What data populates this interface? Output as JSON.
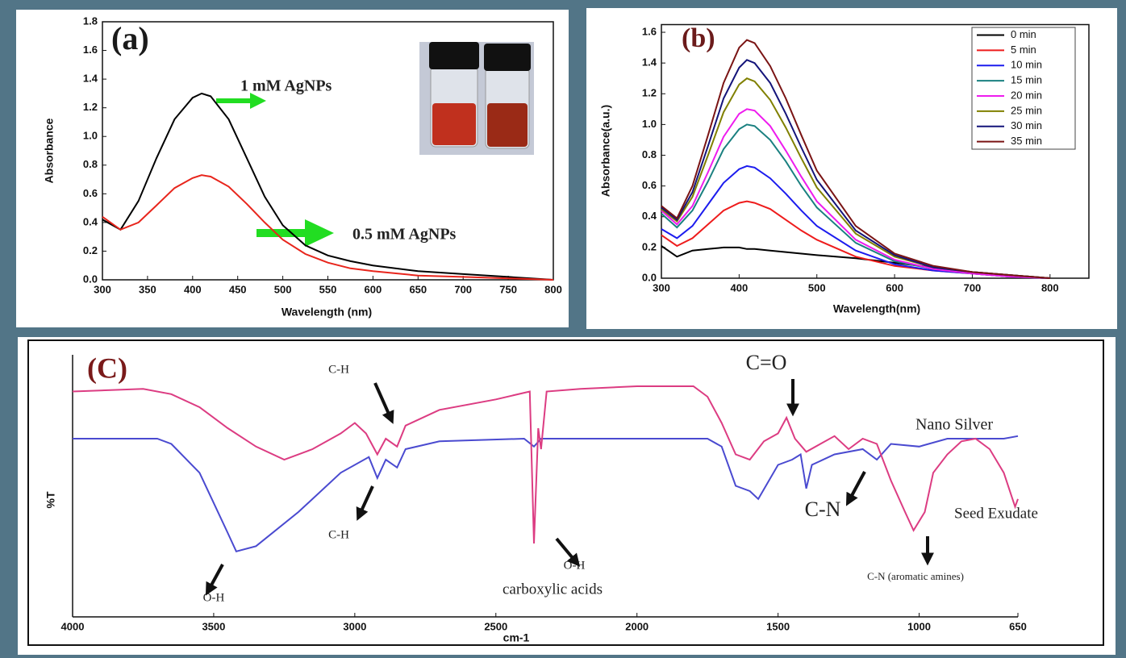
{
  "chart_data": [
    {
      "type": "line",
      "title": "(a)",
      "x_label": "Wavelength (nm)",
      "y_label": "Absorbance",
      "x": [
        300,
        320,
        340,
        360,
        380,
        400,
        410,
        420,
        440,
        460,
        480,
        500,
        525,
        550,
        575,
        600,
        650,
        700,
        750,
        800
      ],
      "series": [
        {
          "name": "1 mM AgNPs",
          "color": "#000000",
          "values": [
            0.42,
            0.35,
            0.55,
            0.85,
            1.12,
            1.27,
            1.3,
            1.28,
            1.12,
            0.85,
            0.58,
            0.38,
            0.24,
            0.17,
            0.13,
            0.1,
            0.06,
            0.04,
            0.02,
            0.0
          ]
        },
        {
          "name": "0.5 mM AgNPs",
          "color": "#e8251c",
          "values": [
            0.44,
            0.35,
            0.4,
            0.52,
            0.64,
            0.71,
            0.73,
            0.72,
            0.65,
            0.53,
            0.4,
            0.28,
            0.18,
            0.12,
            0.08,
            0.06,
            0.03,
            0.02,
            0.01,
            0.0
          ]
        }
      ],
      "xlim": [
        300,
        800
      ],
      "xticks": [
        300,
        350,
        400,
        450,
        500,
        550,
        600,
        650,
        700,
        750,
        800
      ],
      "ylim": [
        0,
        1.8
      ],
      "yticks": [
        {
          "value": 0,
          "label": "0.0"
        },
        0.2,
        0.4,
        0.6,
        0.8,
        {
          "value": 1,
          "label": "1.0"
        },
        1.2,
        1.4,
        1.6,
        1.8
      ]
    },
    {
      "type": "line",
      "title": "(b)",
      "x_label": "Wavelength(nm)",
      "y_label": "Absorbance(a.u.)",
      "x": [
        300,
        320,
        340,
        360,
        380,
        400,
        410,
        420,
        440,
        460,
        480,
        500,
        550,
        600,
        650,
        700,
        750,
        800
      ],
      "series": [
        {
          "name": "0 min",
          "color": "#000000",
          "values": [
            0.21,
            0.14,
            0.18,
            0.19,
            0.2,
            0.2,
            0.19,
            0.19,
            0.18,
            0.17,
            0.16,
            0.15,
            0.13,
            0.1,
            0.07,
            0.04,
            0.02,
            0.0
          ]
        },
        {
          "name": "5 min",
          "color": "#ee1c1c",
          "values": [
            0.28,
            0.21,
            0.26,
            0.35,
            0.44,
            0.49,
            0.5,
            0.49,
            0.45,
            0.38,
            0.31,
            0.25,
            0.14,
            0.08,
            0.05,
            0.03,
            0.01,
            0.0
          ]
        },
        {
          "name": "10 min",
          "color": "#1c1cee",
          "values": [
            0.32,
            0.26,
            0.34,
            0.48,
            0.62,
            0.71,
            0.73,
            0.72,
            0.65,
            0.55,
            0.44,
            0.34,
            0.18,
            0.09,
            0.05,
            0.03,
            0.01,
            0.0
          ]
        },
        {
          "name": "15 min",
          "color": "#1a8080",
          "values": [
            0.42,
            0.33,
            0.44,
            0.63,
            0.84,
            0.97,
            1.0,
            0.99,
            0.9,
            0.76,
            0.6,
            0.46,
            0.23,
            0.11,
            0.06,
            0.03,
            0.01,
            0.0
          ]
        },
        {
          "name": "20 min",
          "color": "#ee1cee",
          "values": [
            0.44,
            0.35,
            0.47,
            0.69,
            0.92,
            1.07,
            1.1,
            1.09,
            0.99,
            0.83,
            0.66,
            0.5,
            0.25,
            0.12,
            0.06,
            0.03,
            0.01,
            0.0
          ]
        },
        {
          "name": "25 min",
          "color": "#808000",
          "values": [
            0.45,
            0.37,
            0.53,
            0.8,
            1.08,
            1.26,
            1.3,
            1.28,
            1.16,
            0.98,
            0.78,
            0.59,
            0.29,
            0.14,
            0.07,
            0.04,
            0.02,
            0.0
          ]
        },
        {
          "name": "30 min",
          "color": "#14147a",
          "values": [
            0.46,
            0.38,
            0.56,
            0.86,
            1.17,
            1.37,
            1.42,
            1.4,
            1.27,
            1.07,
            0.85,
            0.64,
            0.31,
            0.15,
            0.07,
            0.04,
            0.02,
            0.0
          ]
        },
        {
          "name": "35 min",
          "color": "#7a1414",
          "values": [
            0.47,
            0.39,
            0.6,
            0.93,
            1.27,
            1.5,
            1.55,
            1.53,
            1.38,
            1.17,
            0.93,
            0.7,
            0.34,
            0.16,
            0.08,
            0.04,
            0.02,
            0.0
          ]
        }
      ],
      "xlim": [
        300,
        850
      ],
      "xticks": [
        300,
        400,
        500,
        600,
        700,
        800
      ],
      "ylim": [
        0,
        1.65
      ],
      "yticks": [
        {
          "value": 0,
          "label": "0.0"
        },
        0.2,
        0.4,
        0.6,
        0.8,
        {
          "value": 1,
          "label": "1.0"
        },
        1.2,
        1.4,
        1.6
      ],
      "legend": "upper right"
    },
    {
      "type": "line",
      "title": "(C)",
      "x_label": "cm-1",
      "y_label": "%T",
      "series": [
        {
          "name": "Nano Silver",
          "color": "#4a4ad0",
          "x": [
            4000,
            3700,
            3650,
            3550,
            3450,
            3420,
            3350,
            3200,
            3050,
            2950,
            2920,
            2890,
            2850,
            2820,
            2700,
            2400,
            2365,
            2340,
            2000,
            1750,
            1700,
            1650,
            1600,
            1570,
            1500,
            1450,
            1420,
            1400,
            1380,
            1300,
            1200,
            1150,
            1100,
            1000,
            900,
            800,
            700,
            650
          ],
          "values": [
            68,
            68,
            66,
            55,
            32,
            25,
            27,
            40,
            55,
            61,
            53,
            60,
            57,
            64,
            67,
            68,
            65,
            68,
            68,
            68,
            65,
            50,
            48,
            45,
            58,
            60,
            62,
            49,
            58,
            62,
            64,
            60,
            66,
            65,
            68,
            68,
            68,
            69
          ]
        },
        {
          "name": "Seed Exudate",
          "color": "#dc3c82",
          "x": [
            4000,
            3750,
            3650,
            3550,
            3450,
            3350,
            3250,
            3150,
            3050,
            3000,
            2960,
            2920,
            2890,
            2850,
            2820,
            2700,
            2500,
            2380,
            2365,
            2350,
            2340,
            2320,
            2200,
            2000,
            1800,
            1750,
            1700,
            1650,
            1600,
            1550,
            1500,
            1470,
            1440,
            1400,
            1350,
            1300,
            1250,
            1200,
            1150,
            1100,
            1050,
            1020,
            980,
            950,
            900,
            850,
            800,
            750,
            700,
            660,
            650
          ],
          "values": [
            86,
            87,
            85,
            80,
            72,
            65,
            60,
            64,
            70,
            74,
            70,
            62,
            68,
            65,
            73,
            79,
            83,
            86,
            28,
            72,
            64,
            86,
            87,
            88,
            88,
            84,
            74,
            62,
            60,
            67,
            70,
            76,
            68,
            63,
            66,
            69,
            64,
            68,
            66,
            52,
            40,
            33,
            40,
            55,
            62,
            67,
            68,
            64,
            55,
            42,
            45
          ]
        }
      ],
      "xlim": [
        4000,
        650
      ],
      "xticks": [
        4000,
        3500,
        3000,
        2500,
        2000,
        1500,
        1000,
        650
      ],
      "ylim": [
        0,
        100
      ],
      "annotations": [
        "C-H",
        "C-H",
        "C=O",
        "C-N",
        "O-H",
        "O-H",
        "carboxylic acids",
        "C-N (aromatic amines)"
      ]
    }
  ]
}
